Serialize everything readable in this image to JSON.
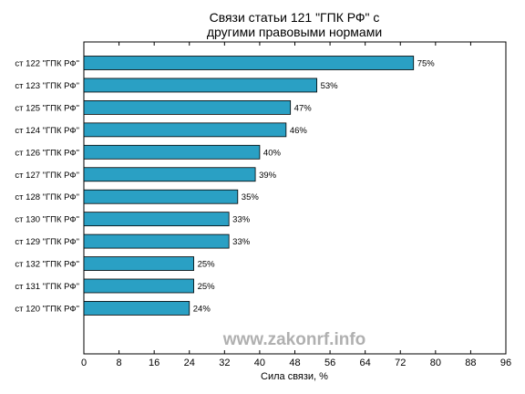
{
  "chart_data": {
    "type": "bar",
    "orientation": "horizontal",
    "title_lines": [
      "Связи статьи 121 \"ГПК РФ\" с",
      "другими правовыми нормами"
    ],
    "xlabel": "Сила связи, %",
    "ylabel": "",
    "xlim": [
      0,
      96
    ],
    "xticks": [
      0,
      8,
      16,
      24,
      32,
      40,
      48,
      56,
      64,
      72,
      80,
      88,
      96
    ],
    "categories": [
      "ст 122 \"ГПК РФ\"",
      "ст 123 \"ГПК РФ\"",
      "ст 125 \"ГПК РФ\"",
      "ст 124 \"ГПК РФ\"",
      "ст 126 \"ГПК РФ\"",
      "ст 127 \"ГПК РФ\"",
      "ст 128 \"ГПК РФ\"",
      "ст 130 \"ГПК РФ\"",
      "ст 129 \"ГПК РФ\"",
      "ст 132 \"ГПК РФ\"",
      "ст 131 \"ГПК РФ\"",
      "ст 120 \"ГПК РФ\""
    ],
    "values": [
      75,
      53,
      47,
      46,
      40,
      39,
      35,
      33,
      33,
      25,
      25,
      24
    ],
    "value_labels": [
      "75%",
      "53%",
      "47%",
      "46%",
      "40%",
      "39%",
      "35%",
      "33%",
      "33%",
      "25%",
      "25%",
      "24%"
    ],
    "bar_color": "#2aa0c4",
    "grid": false,
    "legend": "none"
  },
  "watermark": "www.zakonrf.info"
}
